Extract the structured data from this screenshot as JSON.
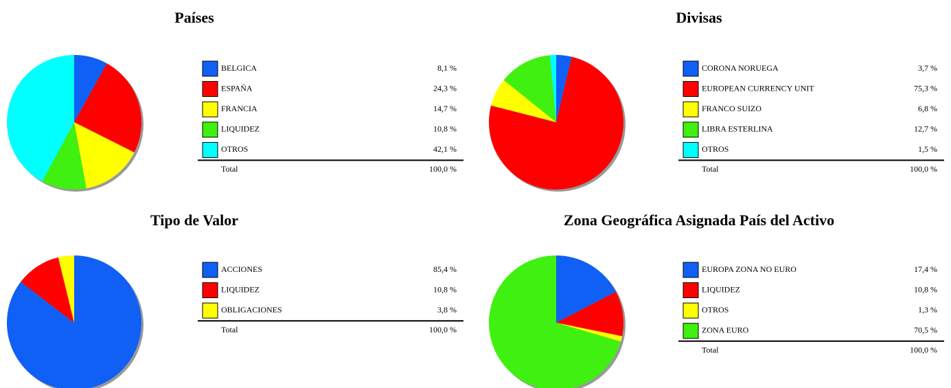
{
  "chart_data": [
    {
      "type": "pie",
      "title": "Países",
      "categories": [
        "BELGICA",
        "ESPAÑA",
        "FRANCIA",
        "LIQUIDEZ",
        "OTROS"
      ],
      "values": [
        8.1,
        24.3,
        14.7,
        10.8,
        42.1
      ],
      "value_labels": [
        "8,1 %",
        "24,3 %",
        "14,7 %",
        "10,8 %",
        "42,1 %"
      ],
      "colors": [
        "#1060f5",
        "#ff0000",
        "#ffff00",
        "#40f010",
        "#00ffff"
      ],
      "total": {
        "label": "Total",
        "value_label": "100,0 %"
      }
    },
    {
      "type": "pie",
      "title": "Divisas",
      "categories": [
        "CORONA NORUEGA",
        "EUROPEAN CURRENCY UNIT",
        "FRANCO SUIZO",
        "LIBRA ESTERLINA",
        "OTROS"
      ],
      "values": [
        3.7,
        75.3,
        6.8,
        12.7,
        1.5
      ],
      "value_labels": [
        "3,7 %",
        "75,3 %",
        "6,8 %",
        "12,7 %",
        "1,5 %"
      ],
      "colors": [
        "#1060f5",
        "#ff0000",
        "#ffff00",
        "#40f010",
        "#00ffff"
      ],
      "total": {
        "label": "Total",
        "value_label": "100,0 %"
      }
    },
    {
      "type": "pie",
      "title": "Tipo de Valor",
      "categories": [
        "ACCIONES",
        "LIQUIDEZ",
        "OBLIGACIONES"
      ],
      "values": [
        85.4,
        10.8,
        3.8
      ],
      "value_labels": [
        "85,4 %",
        "10,8 %",
        "3,8 %"
      ],
      "colors": [
        "#1060f5",
        "#ff0000",
        "#ffff00"
      ],
      "total": {
        "label": "Total",
        "value_label": "100,0 %"
      }
    },
    {
      "type": "pie",
      "title": "Zona Geográfica Asignada País del Activo",
      "categories": [
        "EUROPA ZONA NO EURO",
        "LIQUIDEZ",
        "OTROS",
        "ZONA EURO"
      ],
      "values": [
        17.4,
        10.8,
        1.3,
        70.5
      ],
      "value_labels": [
        "17,4 %",
        "10,8 %",
        "1,3 %",
        "70,5 %"
      ],
      "colors": [
        "#1060f5",
        "#ff0000",
        "#ffff00",
        "#40f010"
      ],
      "total": {
        "label": "Total",
        "value_label": "100,0 %"
      }
    }
  ]
}
